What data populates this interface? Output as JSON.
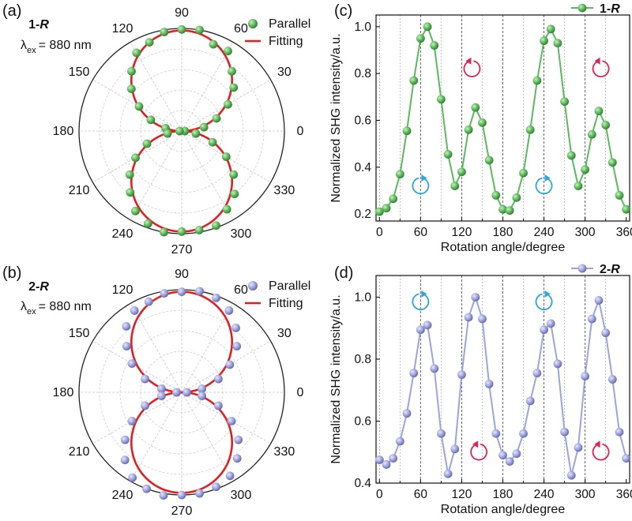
{
  "chart_data": [
    {
      "panel": "(a)",
      "type": "polar",
      "sample_label": {
        "number": "1-",
        "enantiomer": "R"
      },
      "excitation": {
        "symbol": "λ",
        "sub": "ex",
        "value": "= 880 nm"
      },
      "angle_labels": [
        "90",
        "60",
        "30",
        "0",
        "330",
        "300",
        "270",
        "240",
        "210",
        "180",
        "150",
        "120"
      ],
      "legend": [
        "Parallel",
        "Fitting"
      ],
      "series": [
        {
          "name": "Parallel",
          "color": "#5cb85c",
          "theta": [
            0,
            10,
            20,
            30,
            40,
            50,
            60,
            70,
            80,
            90,
            100,
            110,
            120,
            130,
            140,
            150,
            160,
            170,
            180,
            190,
            200,
            210,
            220,
            230,
            240,
            250,
            260,
            270,
            280,
            290,
            300,
            310,
            320,
            330,
            340,
            350
          ],
          "r": [
            0.03,
            0.22,
            0.36,
            0.52,
            0.66,
            0.76,
            0.9,
            0.9,
            1.0,
            0.99,
            0.98,
            0.92,
            0.88,
            0.76,
            0.64,
            0.48,
            0.32,
            0.16,
            0.02,
            0.14,
            0.36,
            0.52,
            0.66,
            0.78,
            0.9,
            0.96,
            1.0,
            0.98,
            0.98,
            0.98,
            0.88,
            0.8,
            0.66,
            0.5,
            0.32,
            0.14
          ]
        },
        {
          "name": "Fitting",
          "color": "#e02020",
          "model": "r = |sin(theta)|",
          "r_max": 0.98
        }
      ]
    },
    {
      "panel": "(b)",
      "type": "polar",
      "sample_label": {
        "number": "2-",
        "enantiomer": "R"
      },
      "excitation": {
        "symbol": "λ",
        "sub": "ex",
        "value": "= 880 nm"
      },
      "angle_labels": [
        "90",
        "60",
        "30",
        "0",
        "330",
        "300",
        "270",
        "240",
        "210",
        "180",
        "150",
        "120"
      ],
      "legend": [
        "Parallel",
        "Fitting"
      ],
      "series": [
        {
          "name": "Parallel",
          "color": "#9ea3dd",
          "theta": [
            0,
            10,
            20,
            30,
            40,
            50,
            60,
            70,
            80,
            90,
            100,
            110,
            120,
            130,
            140,
            150,
            160,
            170,
            180,
            190,
            200,
            210,
            220,
            230,
            240,
            250,
            260,
            270,
            280,
            290,
            300,
            310,
            320,
            330,
            340,
            350
          ],
          "r": [
            0.05,
            0.2,
            0.38,
            0.54,
            0.7,
            0.82,
            0.92,
            0.98,
            1.0,
            0.98,
            0.98,
            0.94,
            0.92,
            0.84,
            0.7,
            0.56,
            0.38,
            0.2,
            0.05,
            0.2,
            0.38,
            0.56,
            0.72,
            0.86,
            0.96,
            1.0,
            1.02,
            1.0,
            1.0,
            0.98,
            0.94,
            0.84,
            0.72,
            0.56,
            0.38,
            0.2
          ]
        },
        {
          "name": "Fitting",
          "color": "#e02020",
          "model": "r = |sin(theta)|",
          "r_max": 0.98
        }
      ]
    },
    {
      "panel": "(c)",
      "type": "line",
      "xlabel": "Rotation angle/degree",
      "ylabel": "Normalized SHG intensity/a.u.",
      "xlim": [
        -5,
        365
      ],
      "ylim": [
        0.17,
        1.05
      ],
      "xticks": [
        "0",
        "60",
        "120",
        "180",
        "240",
        "300",
        "360"
      ],
      "yticks": [
        "0.2",
        "0.4",
        "0.6",
        "0.8",
        "1.0"
      ],
      "legend": {
        "number": "1-",
        "enantiomer": "R",
        "position": "top-right"
      },
      "series": [
        {
          "name": "1-R",
          "color": "#5cb85c",
          "x": [
            0,
            10,
            20,
            30,
            40,
            50,
            60,
            70,
            80,
            90,
            100,
            110,
            120,
            130,
            140,
            150,
            160,
            170,
            180,
            190,
            200,
            210,
            220,
            230,
            240,
            250,
            260,
            270,
            280,
            290,
            300,
            310,
            320,
            330,
            340,
            350,
            360
          ],
          "y": [
            0.21,
            0.225,
            0.265,
            0.37,
            0.555,
            0.77,
            0.95,
            1.0,
            0.92,
            0.69,
            0.455,
            0.32,
            0.38,
            0.56,
            0.655,
            0.59,
            0.43,
            0.28,
            0.22,
            0.215,
            0.27,
            0.375,
            0.56,
            0.77,
            0.94,
            0.99,
            0.93,
            0.68,
            0.45,
            0.32,
            0.39,
            0.54,
            0.64,
            0.58,
            0.42,
            0.28,
            0.22
          ]
        }
      ],
      "annotations": [
        {
          "type": "rotation-arrow",
          "direction": "ccw",
          "color": "#e0234f",
          "x": 135,
          "y": 0.82
        },
        {
          "type": "rotation-arrow",
          "direction": "ccw",
          "color": "#e0234f",
          "x": 323,
          "y": 0.82
        },
        {
          "type": "rotation-arrow",
          "direction": "cw",
          "color": "#2aa7e0",
          "x": 60,
          "y": 0.32
        },
        {
          "type": "rotation-arrow",
          "direction": "cw",
          "color": "#2aa7e0",
          "x": 240,
          "y": 0.32
        }
      ]
    },
    {
      "panel": "(d)",
      "type": "line",
      "xlabel": "Rotation angle/degree",
      "ylabel": "Normalized SHG intensity/a.u.",
      "xlim": [
        -5,
        365
      ],
      "ylim": [
        0.4,
        1.07
      ],
      "xticks": [
        "0",
        "60",
        "120",
        "180",
        "240",
        "300",
        "360"
      ],
      "yticks": [
        "0.4",
        "0.6",
        "0.8",
        "1.0"
      ],
      "legend": {
        "number": "2-",
        "enantiomer": "R",
        "position": "top-right"
      },
      "series": [
        {
          "name": "2-R",
          "color": "#9ea3dd",
          "x": [
            0,
            10,
            20,
            30,
            40,
            50,
            60,
            70,
            80,
            90,
            100,
            110,
            120,
            130,
            140,
            150,
            160,
            170,
            180,
            190,
            200,
            210,
            220,
            230,
            240,
            250,
            260,
            270,
            280,
            290,
            300,
            310,
            320,
            330,
            340,
            350,
            360
          ],
          "y": [
            0.475,
            0.46,
            0.48,
            0.535,
            0.625,
            0.755,
            0.895,
            0.91,
            0.77,
            0.56,
            0.43,
            0.51,
            0.75,
            0.935,
            1.0,
            0.93,
            0.72,
            0.56,
            0.49,
            0.47,
            0.495,
            0.56,
            0.665,
            0.755,
            0.895,
            0.915,
            0.785,
            0.565,
            0.425,
            0.515,
            0.745,
            0.93,
            0.99,
            0.885,
            0.735,
            0.565,
            0.48
          ]
        }
      ],
      "annotations": [
        {
          "type": "rotation-arrow",
          "direction": "cw",
          "color": "#2aa7e0",
          "x": 60,
          "y": 0.985
        },
        {
          "type": "rotation-arrow",
          "direction": "cw",
          "color": "#2aa7e0",
          "x": 240,
          "y": 0.985
        },
        {
          "type": "rotation-arrow",
          "direction": "ccw",
          "color": "#e0234f",
          "x": 145,
          "y": 0.5
        },
        {
          "type": "rotation-arrow",
          "direction": "ccw",
          "color": "#e0234f",
          "x": 323,
          "y": 0.5
        }
      ]
    }
  ]
}
